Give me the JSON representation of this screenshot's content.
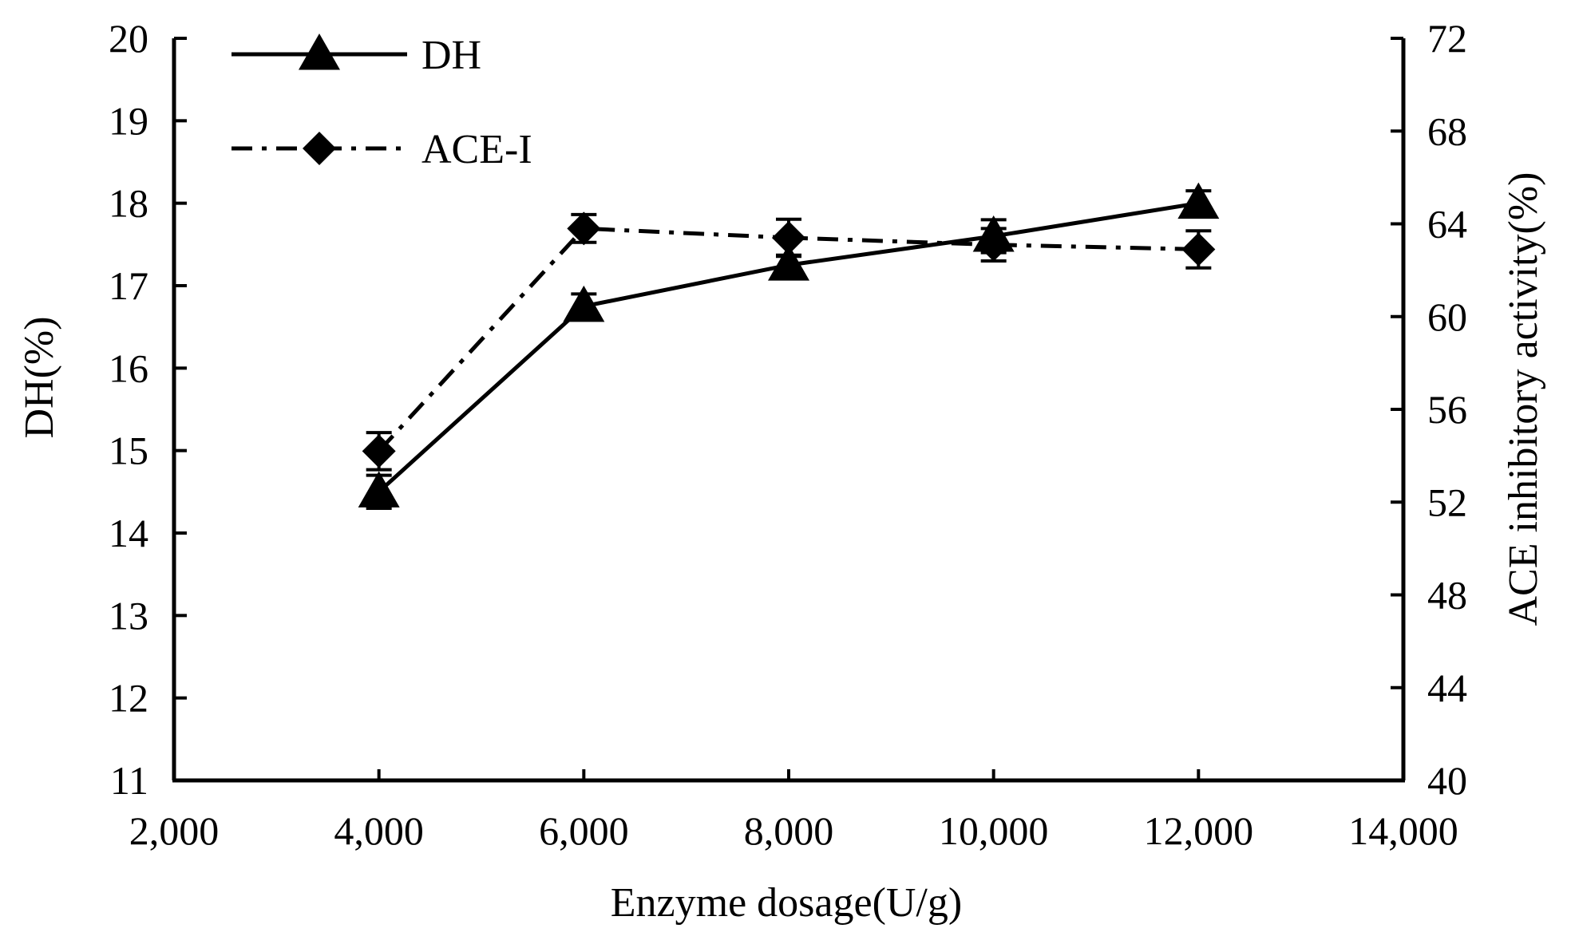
{
  "chart_data": {
    "type": "line",
    "title": "",
    "xlabel": "Enzyme dosage(U/g)",
    "ylabel_left": "DH(%)",
    "ylabel_right": "ACE inhibitory activity(%)",
    "xlim": [
      2000,
      14000
    ],
    "ylim_left": [
      11,
      20
    ],
    "ylim_right": [
      40,
      72
    ],
    "x_ticks": [
      2000,
      4000,
      6000,
      8000,
      10000,
      12000,
      14000
    ],
    "x_tick_labels": [
      "2,000",
      "4,000",
      "6,000",
      "8,000",
      "10,000",
      "12,000",
      "14,000"
    ],
    "y_left_ticks": [
      11,
      12,
      13,
      14,
      15,
      16,
      17,
      18,
      19,
      20
    ],
    "y_left_tick_labels": [
      "11",
      "12",
      "13",
      "14",
      "15",
      "16",
      "17",
      "18",
      "19",
      "20"
    ],
    "y_right_ticks": [
      40,
      44,
      48,
      52,
      56,
      60,
      64,
      68,
      72
    ],
    "y_right_tick_labels": [
      "40",
      "44",
      "48",
      "52",
      "56",
      "60",
      "64",
      "68",
      "72"
    ],
    "grid": false,
    "legend_position": "top-left",
    "colors": {
      "line": "#000000",
      "background": "#ffffff"
    },
    "series": [
      {
        "name": "DH",
        "axis": "left",
        "line_style": "solid",
        "marker": "triangle",
        "x": [
          4000,
          6000,
          8000,
          10000,
          12000
        ],
        "y": [
          14.5,
          16.75,
          17.25,
          17.6,
          18.0
        ],
        "error": [
          0.2,
          0.15,
          0.12,
          0.2,
          0.15
        ]
      },
      {
        "name": "ACE-I",
        "axis": "right",
        "line_style": "dash-dot",
        "marker": "diamond",
        "x": [
          4000,
          6000,
          8000,
          10000,
          12000
        ],
        "y": [
          54.2,
          63.8,
          63.4,
          63.1,
          62.9
        ],
        "error": [
          0.8,
          0.6,
          0.8,
          0.7,
          0.8
        ]
      }
    ]
  }
}
